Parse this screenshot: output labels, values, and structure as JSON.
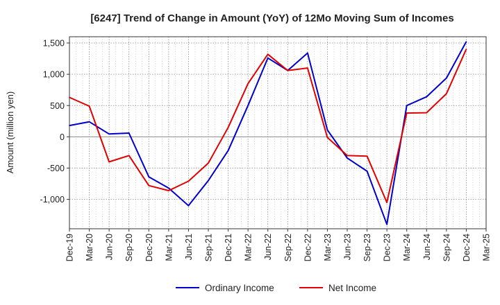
{
  "chart_data": {
    "type": "line",
    "title": "[6247]  Trend of Change in Amount (YoY) of 12Mo Moving Sum of Incomes",
    "xlabel": "",
    "ylabel": "Amount (million yen)",
    "ylim": [
      -1470,
      1600
    ],
    "yticks": [
      -1000,
      -500,
      0,
      500,
      1000,
      1500
    ],
    "ytick_labels": [
      "-1,000",
      "-500",
      "0",
      "500",
      "1,000",
      "1,500"
    ],
    "categories": [
      "Dec-19",
      "Mar-20",
      "Jun-20",
      "Sep-20",
      "Dec-20",
      "Mar-21",
      "Jun-21",
      "Sep-21",
      "Dec-21",
      "Mar-22",
      "Jun-22",
      "Sep-22",
      "Dec-22",
      "Mar-23",
      "Jun-23",
      "Sep-23",
      "Dec-23",
      "Mar-24",
      "Jun-24",
      "Sep-24",
      "Dec-24",
      "Mar-25"
    ],
    "grid": true,
    "legend_position": "bottom",
    "series": [
      {
        "name": "Ordinary Income",
        "color": "#0000cc",
        "values": [
          180,
          240,
          45,
          60,
          -640,
          -820,
          -1100,
          -700,
          -220,
          500,
          1260,
          1060,
          1340,
          110,
          -340,
          -550,
          -1400,
          500,
          640,
          940,
          1520,
          null
        ]
      },
      {
        "name": "Net Income",
        "color": "#e00000",
        "values": [
          630,
          490,
          -400,
          -300,
          -780,
          -860,
          -710,
          -420,
          150,
          850,
          1320,
          1060,
          1100,
          -10,
          -300,
          -310,
          -1050,
          380,
          385,
          690,
          1400,
          null
        ]
      }
    ]
  }
}
